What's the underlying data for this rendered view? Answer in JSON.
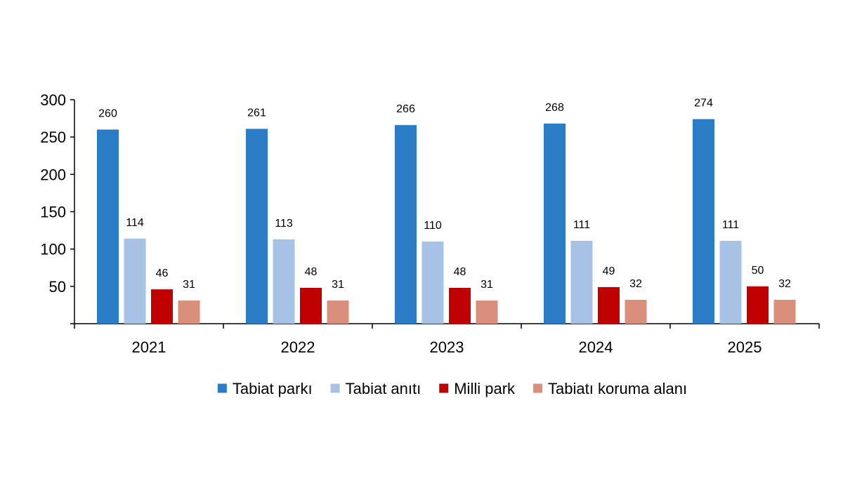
{
  "chart_data": {
    "type": "bar",
    "categories": [
      "2021",
      "2022",
      "2023",
      "2024",
      "2025"
    ],
    "series": [
      {
        "name": "Tabiat parkı",
        "color": "#2A7CC6",
        "values": [
          260,
          261,
          266,
          268,
          274
        ]
      },
      {
        "name": "Tabiat anıtı",
        "color": "#A7C2E4",
        "values": [
          114,
          113,
          110,
          111,
          111
        ]
      },
      {
        "name": "Milli park",
        "color": "#C00000",
        "values": [
          46,
          48,
          48,
          49,
          50
        ]
      },
      {
        "name": "Tabiatı koruma alanı",
        "color": "#DA8E7C",
        "values": [
          31,
          31,
          31,
          32,
          32
        ]
      }
    ],
    "yticks": [
      50,
      100,
      150,
      200,
      250,
      300
    ],
    "ylim": [
      0,
      300
    ],
    "grid": false,
    "legend": "bottom",
    "axis_color": "#000000"
  }
}
